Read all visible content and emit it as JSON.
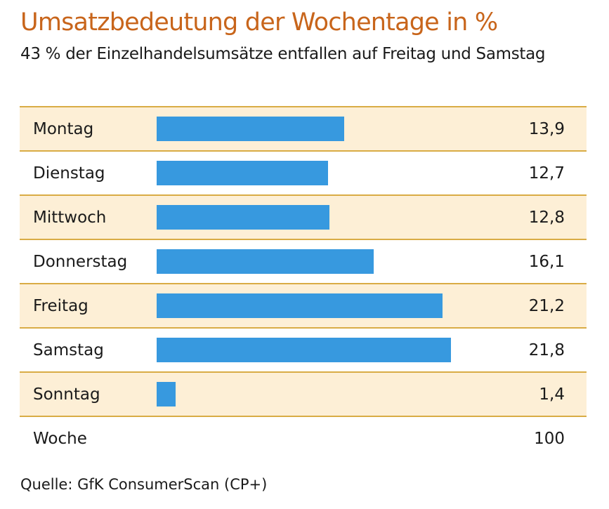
{
  "chart_data": {
    "type": "bar",
    "orientation": "horizontal",
    "title": "Umsatzbedeutung der Wochentage in %",
    "subtitle": "43 % der Einzelhandelsumsätze entfallen auf Freitag und Samstag",
    "categories": [
      "Montag",
      "Dienstag",
      "Mittwoch",
      "Donnerstag",
      "Freitag",
      "Samstag",
      "Sonntag"
    ],
    "values": [
      13.9,
      12.7,
      12.8,
      16.1,
      21.2,
      21.8,
      1.4
    ],
    "value_labels": [
      "13,9",
      "12,7",
      "12,8",
      "16,1",
      "21,2",
      "21,8",
      "1,4"
    ],
    "total": {
      "label": "Woche",
      "value": 100,
      "value_label": "100"
    },
    "xlabel": "",
    "ylabel": "",
    "xlim": [
      0,
      25
    ],
    "grid": false,
    "legend": "none",
    "source": "Quelle: GfK ConsumerScan (CP+)",
    "colors": {
      "bar": "#3799df",
      "title": "#c8651b",
      "row_shade": "#fdefd6",
      "rule": "#d9ac45"
    }
  }
}
